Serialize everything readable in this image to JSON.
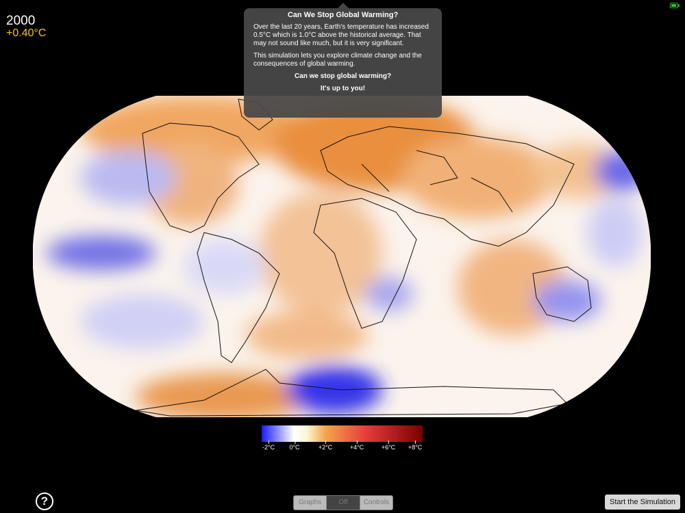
{
  "status": {
    "year": "2000",
    "anomaly": "+0.40°C",
    "anomaly_color": "#f5c518"
  },
  "popup": {
    "title": "Can We Stop Global Warming?",
    "paragraph1": "Over the last 20 years, Earth's temperature has increased 0.5°C which is 1.0°C above the historical average. That may not sound like much, but it is very significant.",
    "paragraph2": "This simulation lets you explore climate change and the consequences of global warming.",
    "question": "Can we stop global warming?",
    "answer": "It's up to you!"
  },
  "legend": {
    "ticks": [
      "-2°C",
      "0°C",
      "+2°C",
      "+4°C",
      "+6°C",
      "+8°C"
    ],
    "colors": [
      "#1a1aff",
      "#ffffff",
      "#f2a34a",
      "#e63b3b",
      "#7a0000"
    ]
  },
  "toolbar": {
    "help_label": "?",
    "segments": [
      "Graphs",
      "Off",
      "Controls"
    ],
    "selected_segment": "Off",
    "start_label": "Start the Simulation"
  },
  "icons": {
    "help": "question-circle-icon",
    "battery": "battery-icon"
  }
}
